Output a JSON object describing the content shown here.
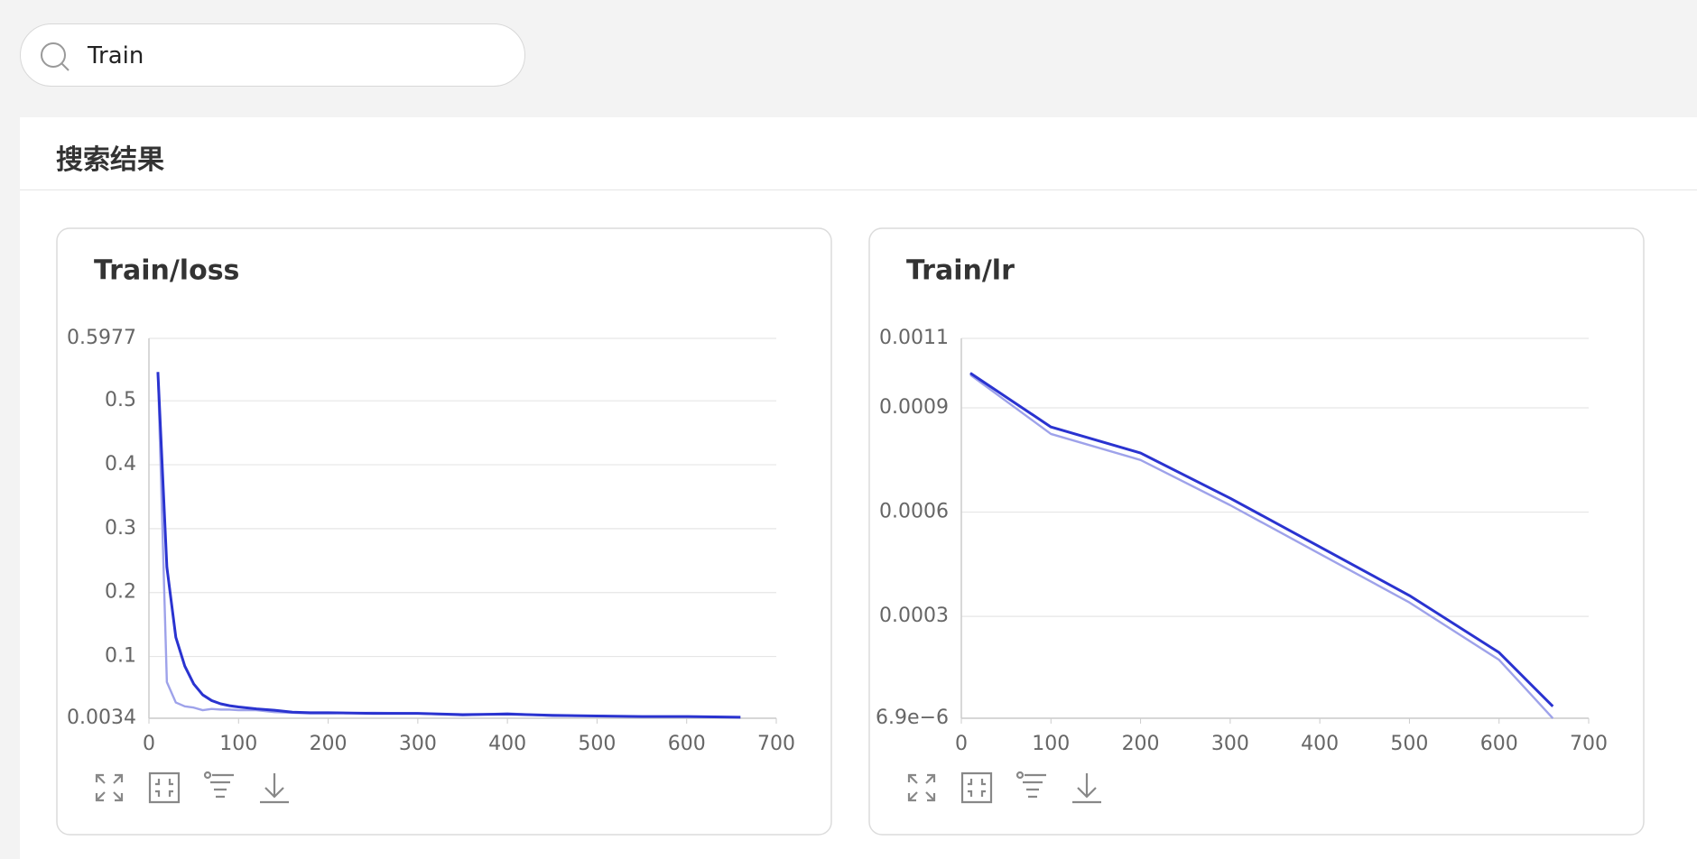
{
  "search": {
    "query": "Train"
  },
  "section": {
    "title": "搜索结果"
  },
  "chart_data": [
    {
      "type": "line",
      "title": "Train/loss",
      "x": [
        10,
        20,
        30,
        40,
        50,
        60,
        70,
        80,
        90,
        100,
        120,
        140,
        160,
        180,
        200,
        250,
        300,
        350,
        400,
        450,
        500,
        550,
        600,
        660
      ],
      "series": [
        {
          "color": "#9ea2ea",
          "values": [
            0.545,
            0.06,
            0.028,
            0.022,
            0.02,
            0.016,
            0.018,
            0.017,
            0.017,
            0.016,
            0.016,
            0.013,
            0.012,
            0.011,
            0.011,
            0.012,
            0.011,
            0.008,
            0.011,
            0.007,
            0.007,
            0.006,
            0.006,
            0.005
          ]
        },
        {
          "color": "#2a33d0",
          "values": [
            0.545,
            0.24,
            0.13,
            0.085,
            0.057,
            0.04,
            0.031,
            0.026,
            0.023,
            0.021,
            0.018,
            0.016,
            0.013,
            0.012,
            0.012,
            0.011,
            0.011,
            0.009,
            0.01,
            0.008,
            0.007,
            0.006,
            0.006,
            0.005
          ]
        }
      ],
      "xlim": [
        0,
        700
      ],
      "xticks": [
        0,
        100,
        200,
        300,
        400,
        500,
        600,
        700
      ],
      "ylim": [
        0.0034,
        0.5977
      ],
      "yticks": [
        0.0034,
        0.1,
        0.2,
        0.3,
        0.4,
        0.5,
        0.5977
      ],
      "grid": true
    },
    {
      "type": "line",
      "title": "Train/lr",
      "x": [
        10,
        100,
        200,
        300,
        400,
        500,
        600,
        660
      ],
      "series": [
        {
          "color": "#9ea2ea",
          "values": [
            0.000995,
            0.000825,
            0.00075,
            0.00062,
            0.00048,
            0.00034,
            0.000175,
            6.9e-06
          ]
        },
        {
          "color": "#2a33d0",
          "values": [
            0.001,
            0.000845,
            0.00077,
            0.00064,
            0.0005,
            0.00036,
            0.000196,
            4.1e-05
          ]
        }
      ],
      "xlim": [
        0,
        700
      ],
      "xticks": [
        0,
        100,
        200,
        300,
        400,
        500,
        600,
        700
      ],
      "ylim": [
        6.9e-06,
        0.0011
      ],
      "yticks": [
        {
          "value": 6.9e-06,
          "label": "6.9e−6"
        },
        0.0003,
        0.0006,
        0.0009,
        0.0011
      ],
      "grid": true
    }
  ]
}
